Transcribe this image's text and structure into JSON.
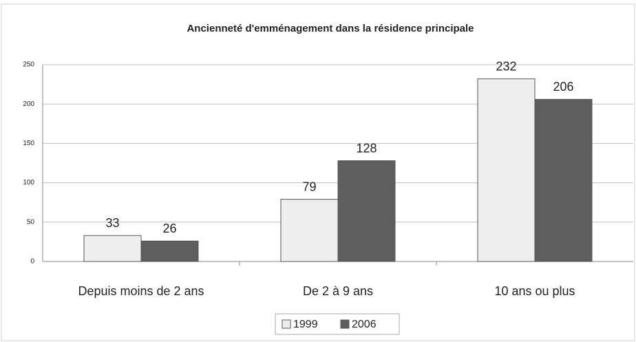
{
  "chart_data": {
    "type": "bar",
    "title": "Ancienneté d'emménagement dans la résidence principale",
    "categories": [
      "Depuis moins de 2 ans",
      "De 2 à 9 ans",
      "10 ans ou plus"
    ],
    "series": [
      {
        "name": "1999",
        "color": "#eeeeee",
        "values": [
          33,
          79,
          232
        ]
      },
      {
        "name": "2006",
        "color": "#5e5e5e",
        "values": [
          26,
          128,
          206
        ]
      }
    ],
    "ylim": [
      0,
      250
    ],
    "yticks": [
      0,
      50,
      100,
      150,
      200,
      250
    ],
    "grid": true,
    "legend": "bottom"
  }
}
